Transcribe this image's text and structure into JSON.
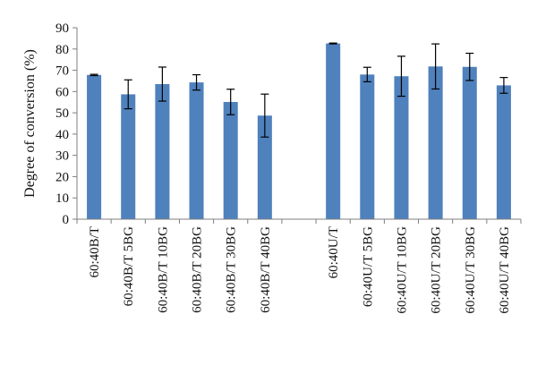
{
  "chart_data": {
    "type": "bar",
    "title": "",
    "xlabel": "",
    "ylabel": "Degree of conversion (%)",
    "ylim": [
      0,
      90
    ],
    "ytick_step": 10,
    "grid": false,
    "legend": "none",
    "bar_color": "#4F81BD",
    "groups": [
      {
        "categories": [
          "60:40B/T",
          "60:40B/T 5BG",
          "60:40B/T 10BG",
          "60:40B/T 20BG",
          "60:40B/T 30BG",
          "60:40B/T 40BG"
        ],
        "values": [
          67.8,
          58.7,
          63.5,
          64.3,
          55.1,
          48.7
        ],
        "errors": [
          0.3,
          6.8,
          8.0,
          3.6,
          6.0,
          10.1
        ]
      },
      {
        "categories": [
          "60:40U/T",
          "60:40U/T 5BG",
          "60:40U/T 10BG",
          "60:40U/T 20BG",
          "60:40U/T 30BG",
          "60:40U/T 40BG"
        ],
        "values": [
          82.6,
          68.0,
          67.2,
          71.8,
          71.6,
          62.9
        ],
        "errors": [
          0.2,
          3.4,
          9.4,
          10.6,
          6.4,
          3.7
        ]
      }
    ]
  }
}
